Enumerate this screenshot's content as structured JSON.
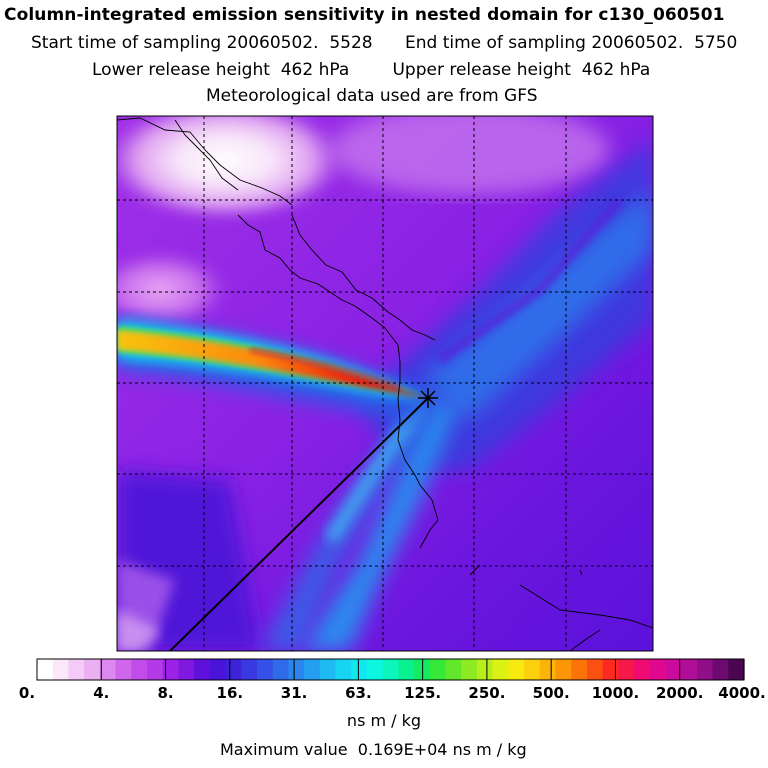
{
  "header": {
    "title": "Column-integrated emission sensitivity in nested domain for c130_060501",
    "line1": "Start time of sampling 20060502.  5528      End time of sampling 20060502.  5750",
    "line2": "Lower release height  462 hPa        Upper release height  462 hPa",
    "line3": "Meteorological data used are from GFS"
  },
  "colorbar": {
    "labels": [
      "0.",
      "4.",
      "8.",
      "16.",
      "31.",
      "63.",
      "125.",
      "250.",
      "500.",
      "1000.",
      "2000.",
      "4000."
    ],
    "colors": [
      "#ffffff",
      "#fbe8fb",
      "#f4caf6",
      "#eab0f2",
      "#dc88ee",
      "#cf66ec",
      "#c24cea",
      "#b43ae8",
      "#9b22e6",
      "#8018e0",
      "#6010dc",
      "#4a14d8",
      "#3d22dc",
      "#3a38e0",
      "#3550e4",
      "#2f6ae8",
      "#2a86ec",
      "#249ef0",
      "#1ebaf2",
      "#16d4f2",
      "#10e8ee",
      "#0cf6e0",
      "#0af6bc",
      "#0af090",
      "#14ea62",
      "#36e838",
      "#62e82a",
      "#8eea22",
      "#b8ee1c",
      "#dcf214",
      "#f6ea10",
      "#fcd00c",
      "#fcb408",
      "#fc9606",
      "#fc7408",
      "#fc5012",
      "#fc2a20",
      "#f61848",
      "#ee0c72",
      "#e0088e",
      "#cc0a9c",
      "#b00e98",
      "#900e88",
      "#6c0a70",
      "#4a0650"
    ],
    "units": "ns m / kg"
  },
  "footer": {
    "max_value": "Maximum value  0.169E+04 ns m / kg"
  },
  "map": {
    "release_marker": "release-point"
  }
}
